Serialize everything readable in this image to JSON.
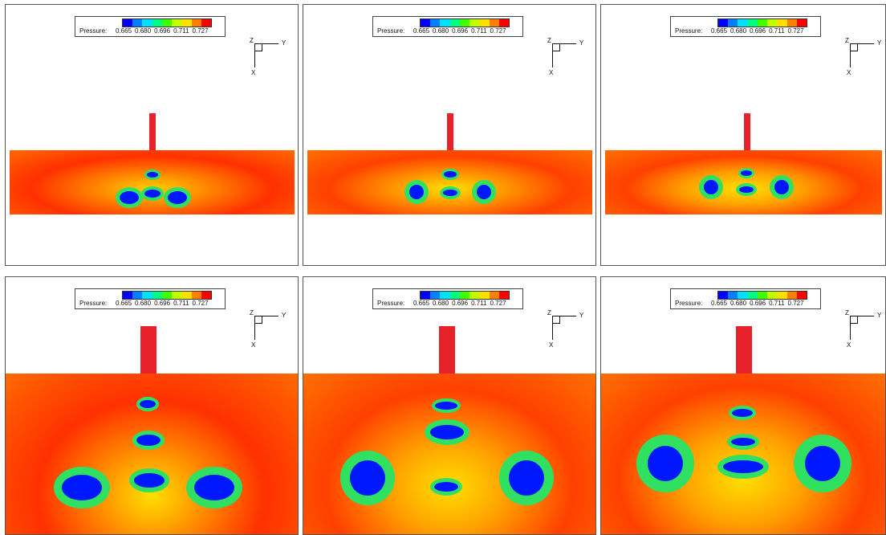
{
  "legend": {
    "label": "Pressure:",
    "ticks": [
      "0.665",
      "0.680",
      "0.696",
      "0.711",
      "0.727"
    ],
    "colors": [
      "#0000ff",
      "#0080ff",
      "#00e0ff",
      "#00ff80",
      "#40ff00",
      "#c0ff00",
      "#ffe000",
      "#ff8000",
      "#ff0000"
    ]
  },
  "axes": {
    "z": "Z",
    "y": "Y",
    "x": "X"
  },
  "palette": {
    "field_red": "#ff2a00",
    "field_orange": "#ff6a00",
    "jet_red": "#e8222b",
    "vortex_blue": "#0018ff",
    "ring_green": "#30e060",
    "ring_yellow": "#e0f000"
  },
  "panels": [
    {
      "name": "panel-1"
    },
    {
      "name": "panel-2"
    },
    {
      "name": "panel-3"
    },
    {
      "name": "panel-4"
    },
    {
      "name": "panel-5"
    },
    {
      "name": "panel-6"
    }
  ]
}
